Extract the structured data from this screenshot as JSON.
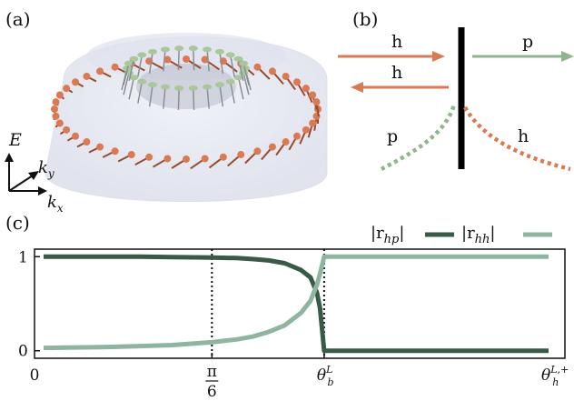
{
  "panels": {
    "a": {
      "label": "(a)",
      "axes": {
        "energy": "E",
        "ky": "k",
        "ky_sub": "y",
        "kx": "k",
        "kx_sub": "x"
      }
    },
    "b": {
      "label": "(b)",
      "incoming_label": "h",
      "reflected_label": "h",
      "transmitted_label": "p",
      "left_curve_label": "p",
      "right_curve_label": "h",
      "colors": {
        "hole": "#d97a52",
        "particle": "#8fb58c",
        "barrier": "#000000"
      }
    },
    "c": {
      "label": "(c)"
    }
  },
  "chart_data": {
    "type": "line",
    "x_ticks": [
      {
        "value": 0,
        "label": "0"
      },
      {
        "value": 0.5236,
        "label": "π/6",
        "num": "π",
        "den": "6"
      },
      {
        "value": 0.8727,
        "label": "θ_b^L",
        "main": "θ",
        "sub": "b",
        "sup": "L"
      },
      {
        "value": 1.5708,
        "label": "θ_h^{L,+}",
        "main": "θ",
        "sub": "h",
        "sup": "L,+"
      }
    ],
    "y_ticks": [
      {
        "value": 0,
        "label": "0"
      },
      {
        "value": 1,
        "label": "1"
      }
    ],
    "xlim": [
      0,
      1.5708
    ],
    "ylim": [
      -0.08,
      1.08
    ],
    "vlines": [
      0.5236,
      0.8727
    ],
    "series": [
      {
        "name": "|r_hp|",
        "legend_text": "|r",
        "legend_sub": "hp",
        "legend_close": "|",
        "color": "#3a5a48",
        "x": [
          0.0,
          0.1,
          0.2,
          0.3,
          0.4,
          0.5236,
          0.6,
          0.65,
          0.7,
          0.75,
          0.8,
          0.83,
          0.85,
          0.86,
          0.8727,
          0.8728,
          1.0,
          1.2,
          1.4,
          1.5708
        ],
        "y": [
          1.0,
          1.0,
          1.0,
          1.0,
          0.995,
          0.99,
          0.985,
          0.975,
          0.96,
          0.93,
          0.86,
          0.78,
          0.62,
          0.45,
          0.0,
          0.0,
          0.0,
          0.0,
          0.0,
          0.0
        ]
      },
      {
        "name": "|r_hh|",
        "legend_text": "|r",
        "legend_sub": "hh",
        "legend_close": "|",
        "color": "#8fb5a0",
        "x": [
          0.0,
          0.1,
          0.2,
          0.3,
          0.4,
          0.5236,
          0.6,
          0.65,
          0.7,
          0.75,
          0.8,
          0.83,
          0.85,
          0.86,
          0.8727,
          0.8728,
          1.0,
          1.2,
          1.4,
          1.5708
        ],
        "y": [
          0.03,
          0.035,
          0.04,
          0.05,
          0.06,
          0.09,
          0.12,
          0.15,
          0.2,
          0.27,
          0.4,
          0.53,
          0.7,
          0.82,
          1.0,
          1.0,
          1.0,
          1.0,
          1.0,
          1.0
        ]
      }
    ]
  }
}
